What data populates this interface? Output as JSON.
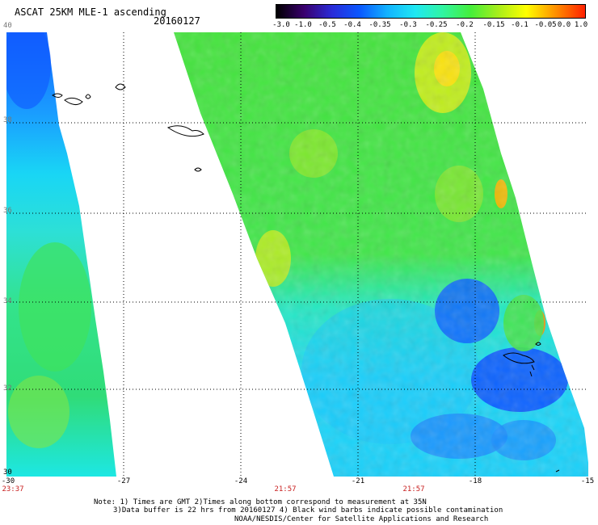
{
  "title": "ASCAT 25KM MLE-1 ascending",
  "date": "20160127",
  "colorbar": {
    "labels": [
      "-3.0",
      "-1.0",
      "-0.5",
      "-0.4",
      "-0.35",
      "-0.3",
      "-0.25",
      "-0.2",
      "-0.15",
      "-0.1",
      "-0.05",
      "0.0",
      "1.0"
    ],
    "colors": [
      "#000000",
      "#3a006e",
      "#2a2bd8",
      "#0a58ff",
      "#12b3ff",
      "#1fe8f3",
      "#30f5a0",
      "#45ee3a",
      "#a9ee1a",
      "#ffff00",
      "#ff9500",
      "#ff2000"
    ]
  },
  "map": {
    "lat_labels": [
      "40",
      "38",
      "36",
      "34",
      "32",
      "30"
    ],
    "lon_labels": [
      "-30",
      "-27",
      "-24",
      "-21",
      "-18",
      "-15"
    ],
    "time_labels": [
      "23:37",
      "21:57",
      "21:57"
    ],
    "lat_range": [
      30,
      40
    ],
    "lon_range": [
      -30,
      -15
    ]
  },
  "notes": {
    "line1": "Note: 1) Times are GMT 2)Times along bottom correspond to measurement at 35N",
    "line2": "3)Data buffer is 22 hrs from 20160127 4) Black wind barbs indicate possible contamination",
    "line3": "NOAA/NESDIS/Center for Satellite Applications and Research"
  }
}
